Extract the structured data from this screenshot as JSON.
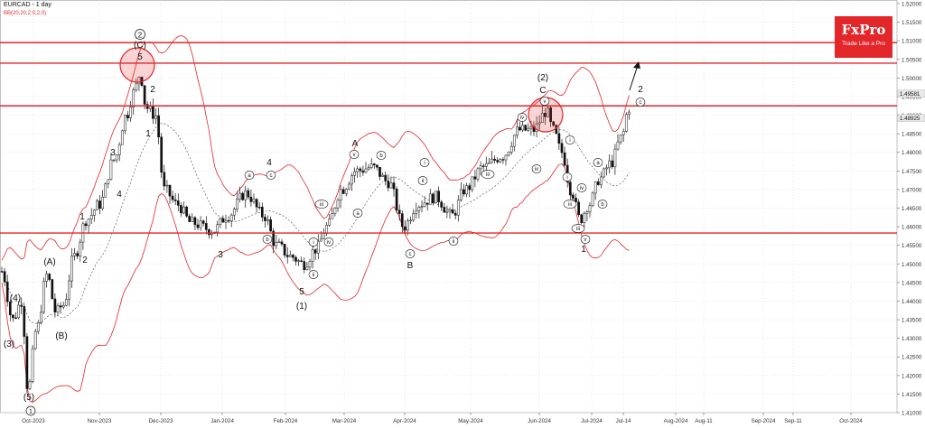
{
  "header": {
    "symbol_timeframe": "EURCAD - 1 day",
    "indicator": "BB(20,20,2.0,2.0)"
  },
  "logo": {
    "brand": "FxPro",
    "tagline": "Trade Like a Pro"
  },
  "colors": {
    "line": "#e3262a",
    "candle": "#111111",
    "grid": "#d6d6d6",
    "price_tag": "#e9e9e9"
  },
  "chart_data": {
    "type": "candlestick",
    "title": "EURCAD - 1 day",
    "ylim": [
      1.41,
      1.52
    ],
    "y_ticks": [
      "1.52000",
      "1.51500",
      "1.51000",
      "1.50500",
      "1.50000",
      "1.49500",
      "1.49000",
      "1.48500",
      "1.48000",
      "1.47500",
      "1.47000",
      "1.46500",
      "1.46000",
      "1.45500",
      "1.45000",
      "1.44500",
      "1.44000",
      "1.43500",
      "1.43000",
      "1.42500",
      "1.42000",
      "1.41500",
      "1.41000"
    ],
    "x_ticks": [
      "Oct-2023",
      "Nov-2023",
      "Dec-2023",
      "Jan-2024",
      "Feb-2024",
      "Mar-2024",
      "Apr-2024",
      "May-2024",
      "Jun-2024",
      "Jul-2024",
      "Jul-14",
      "Aug-2024",
      "Aug-11",
      "Sep-2024",
      "Sep-11",
      "Oct-2024"
    ],
    "price_tags": [
      "1.49581",
      "1.48925"
    ],
    "horizontal_lines": [
      1.5095,
      1.504,
      1.4925,
      1.4583
    ],
    "indicator": "BB(20,20,2.0,2.0)",
    "grid": true,
    "wave_labels": [
      "(2)",
      "(C)",
      "5",
      "2",
      "1",
      "3",
      "4",
      "1",
      "2",
      "(A)",
      "(B)",
      "(4)",
      "(3)",
      "(5)",
      "(1)",
      "4",
      "3",
      "5",
      "(1)",
      "A",
      "B",
      "(2)",
      "C",
      "2",
      "1"
    ],
    "circled_labels": [
      "a",
      "b",
      "c",
      "i",
      "ii",
      "iii",
      "iv",
      "v"
    ]
  }
}
